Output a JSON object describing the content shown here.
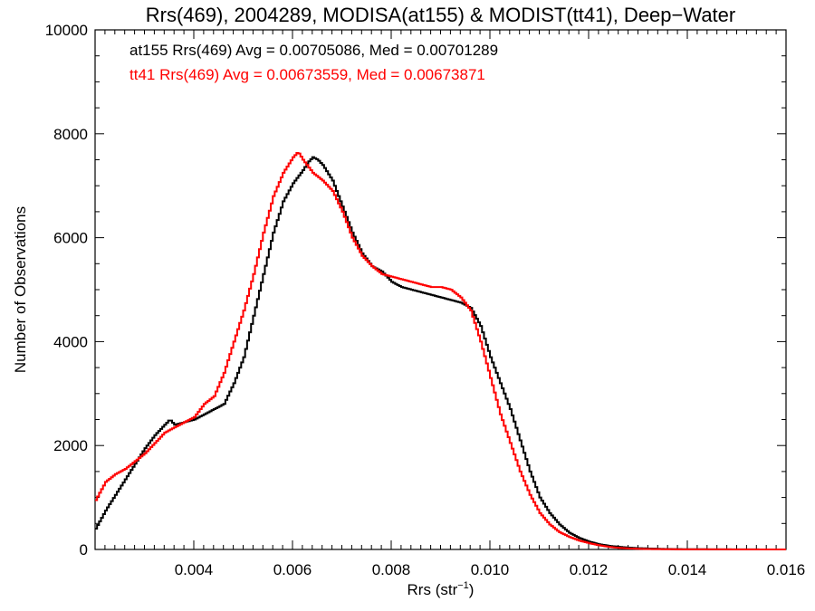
{
  "chart_data": {
    "type": "line",
    "step": true,
    "title": "Rrs(469), 2004289, MODISA(at155) & MODIST(tt41), Deep−Water",
    "xlabel_base": "Rrs (str",
    "xlabel_sup": "−1",
    "xlabel_end": ")",
    "ylabel": "Number of Observations",
    "xlim": [
      0.002,
      0.016
    ],
    "ylim": [
      0,
      10000
    ],
    "xticks": [
      0.004,
      0.006,
      0.008,
      0.01,
      0.012,
      0.014,
      0.016
    ],
    "xtick_labels": [
      "0.004",
      "0.006",
      "0.008",
      "0.010",
      "0.012",
      "0.014",
      "0.016"
    ],
    "yticks": [
      0,
      2000,
      4000,
      6000,
      8000,
      10000
    ],
    "ytick_labels": [
      "0",
      "2000",
      "4000",
      "6000",
      "8000",
      "10000"
    ],
    "grid": false,
    "legend_position": "top-left",
    "series": [
      {
        "id": "at155",
        "color": "#000000",
        "legend": "at155 Rrs(469) Avg = 0.00705086, Med = 0.00701289",
        "x": [
          0.002,
          0.0022,
          0.0024,
          0.0026,
          0.0028,
          0.003,
          0.0032,
          0.0034,
          0.0035,
          0.0036,
          0.0038,
          0.004,
          0.0042,
          0.0044,
          0.0046,
          0.0048,
          0.005,
          0.0052,
          0.0054,
          0.0056,
          0.0058,
          0.006,
          0.0062,
          0.0063,
          0.0064,
          0.0065,
          0.0066,
          0.0068,
          0.007,
          0.0072,
          0.0074,
          0.0076,
          0.0078,
          0.008,
          0.0082,
          0.0084,
          0.0086,
          0.0088,
          0.009,
          0.0092,
          0.0094,
          0.0096,
          0.0098,
          0.01,
          0.0102,
          0.0104,
          0.0106,
          0.0108,
          0.011,
          0.0112,
          0.0114,
          0.0116,
          0.0118,
          0.012,
          0.0122,
          0.0124,
          0.0126,
          0.0128,
          0.013,
          0.0132,
          0.0134,
          0.0136,
          0.014,
          0.016
        ],
        "y": [
          400,
          750,
          1050,
          1350,
          1650,
          1950,
          2200,
          2400,
          2500,
          2400,
          2450,
          2500,
          2600,
          2700,
          2800,
          3200,
          3700,
          4500,
          5300,
          6100,
          6700,
          7050,
          7300,
          7450,
          7550,
          7500,
          7400,
          7100,
          6600,
          6100,
          5700,
          5450,
          5350,
          5150,
          5050,
          5000,
          4950,
          4900,
          4850,
          4800,
          4750,
          4650,
          4300,
          3700,
          3200,
          2700,
          2100,
          1500,
          1000,
          700,
          480,
          320,
          220,
          150,
          100,
          70,
          50,
          35,
          25,
          18,
          12,
          8,
          4,
          0
        ]
      },
      {
        "id": "tt41",
        "color": "#ff0000",
        "legend": "tt41 Rrs(469) Avg = 0.00673559, Med = 0.00673871",
        "x": [
          0.002,
          0.0022,
          0.0024,
          0.0026,
          0.0028,
          0.003,
          0.0032,
          0.0034,
          0.0036,
          0.0038,
          0.004,
          0.0042,
          0.0044,
          0.0046,
          0.0048,
          0.005,
          0.0052,
          0.0054,
          0.0056,
          0.0058,
          0.006,
          0.0061,
          0.0062,
          0.0064,
          0.0066,
          0.0068,
          0.007,
          0.0072,
          0.0074,
          0.0076,
          0.0078,
          0.008,
          0.0082,
          0.0084,
          0.0086,
          0.0088,
          0.009,
          0.0092,
          0.0094,
          0.0096,
          0.0098,
          0.01,
          0.0102,
          0.0104,
          0.0106,
          0.0108,
          0.011,
          0.0112,
          0.0114,
          0.0116,
          0.0118,
          0.012,
          0.0122,
          0.0124,
          0.0126,
          0.0128,
          0.013,
          0.0132,
          0.0136,
          0.014,
          0.016
        ],
        "y": [
          950,
          1300,
          1450,
          1550,
          1700,
          1850,
          2050,
          2250,
          2350,
          2450,
          2550,
          2800,
          2950,
          3400,
          4000,
          4600,
          5300,
          6100,
          6800,
          7250,
          7550,
          7650,
          7500,
          7250,
          7100,
          6900,
          6500,
          6000,
          5650,
          5450,
          5300,
          5250,
          5200,
          5150,
          5100,
          5050,
          5050,
          5000,
          4850,
          4600,
          4000,
          3300,
          2600,
          2050,
          1500,
          1050,
          700,
          480,
          330,
          240,
          170,
          120,
          80,
          50,
          30,
          20,
          12,
          8,
          4,
          2,
          0
        ]
      }
    ]
  }
}
